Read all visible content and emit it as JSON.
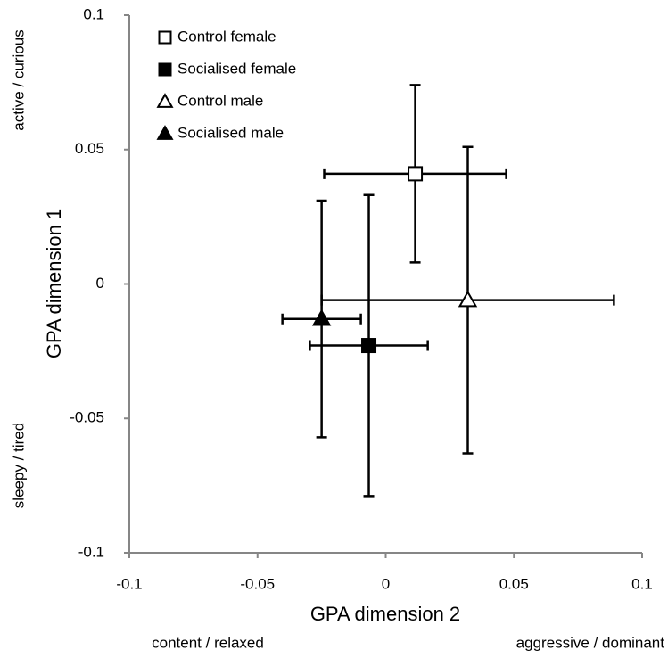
{
  "chart_data": {
    "type": "scatter",
    "xlabel": "GPA dimension 2",
    "ylabel": "GPA dimension 1",
    "annotations": {
      "y_top": "active / curious",
      "y_bottom": "sleepy / tired",
      "x_left": "content / relaxed",
      "x_right": "aggressive / dominant"
    },
    "xlim": [
      -0.1,
      0.1
    ],
    "xticks": [
      -0.1,
      -0.05,
      0,
      0.05,
      0.1
    ],
    "ylim": [
      -0.1,
      0.1
    ],
    "yticks": [
      -0.1,
      -0.05,
      0,
      0.05,
      0.1
    ],
    "grid": false,
    "legend": "upper left",
    "series": [
      {
        "name": "Control female",
        "marker": "square",
        "filled": false,
        "color": "#000000",
        "x": [
          0.0115
        ],
        "y": [
          0.041
        ],
        "xerr": [
          0.0355
        ],
        "yerr": [
          0.033
        ]
      },
      {
        "name": "Socialised female",
        "marker": "square",
        "filled": true,
        "color": "#000000",
        "x": [
          -0.0066
        ],
        "y": [
          -0.0229
        ],
        "xerr": [
          0.023
        ],
        "yerr": [
          0.056
        ]
      },
      {
        "name": "Control male",
        "marker": "triangle",
        "filled": false,
        "color": "#000000",
        "x": [
          0.032
        ],
        "y": [
          -0.006
        ],
        "xerr": [
          0.057
        ],
        "yerr": [
          0.057
        ]
      },
      {
        "name": "Socialised male",
        "marker": "triangle",
        "filled": true,
        "color": "#000000",
        "x": [
          -0.025
        ],
        "y": [
          -0.013
        ],
        "xerr": [
          0.0153
        ],
        "yerr": [
          0.044
        ]
      }
    ]
  }
}
